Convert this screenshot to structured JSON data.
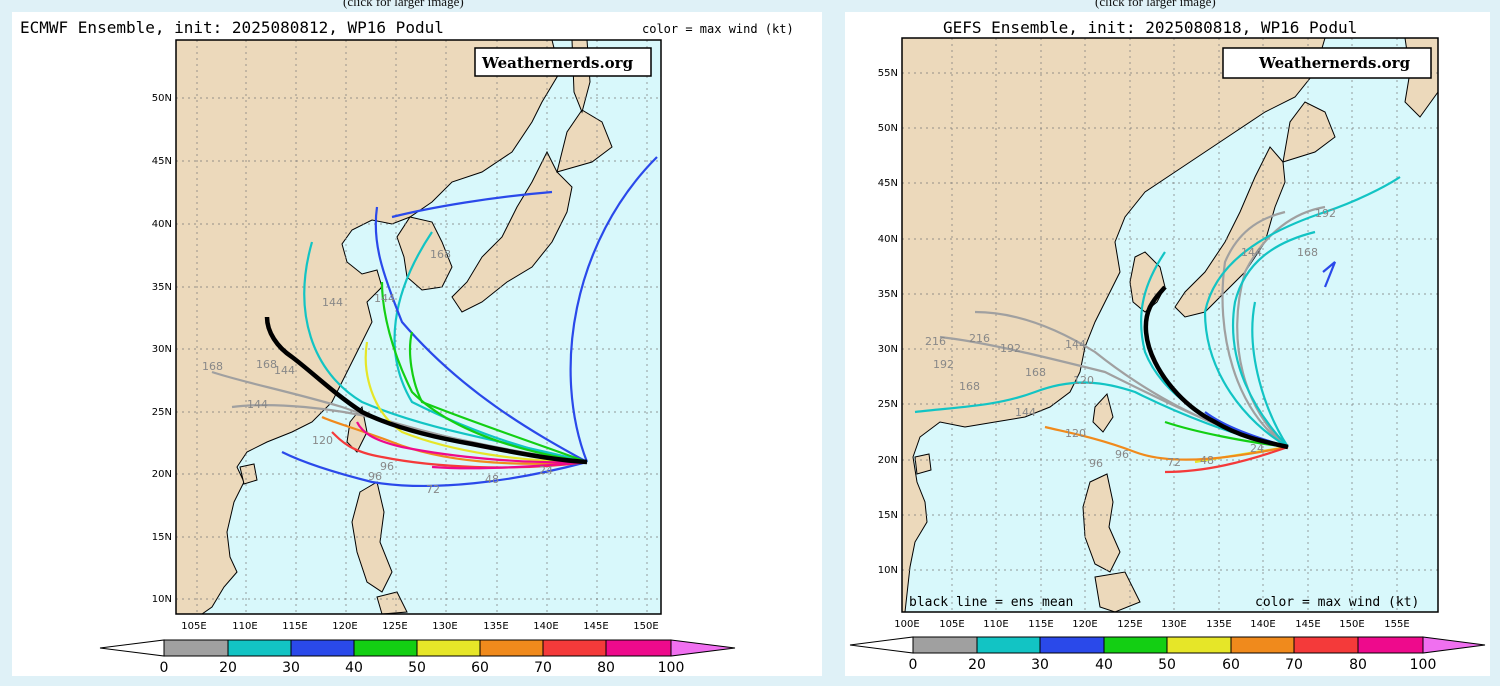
{
  "captions": [
    "(click for larger image)",
    "(click for larger image)"
  ],
  "left": {
    "title": "ECMWF Ensemble, init: 2025080812, WP16 Podul",
    "color_note": "color = max wind (kt)",
    "watermark": "Weathernerds.org",
    "lat_labels": [
      "50N",
      "45N",
      "40N",
      "35N",
      "30N",
      "25N",
      "20N",
      "15N",
      "10N"
    ],
    "lon_labels": [
      "105E",
      "110E",
      "115E",
      "120E",
      "125E",
      "130E",
      "135E",
      "140E",
      "145E",
      "150E"
    ],
    "hour_labels": [
      "168",
      "144",
      "144",
      "168",
      "168",
      "144",
      "144",
      "120",
      "96",
      "96",
      "72",
      "48",
      "24"
    ],
    "bottom_note_left": "",
    "bottom_note_right": ""
  },
  "right": {
    "title": "GEFS Ensemble, init: 2025080818, WP16 Podul",
    "color_note": "",
    "watermark": "Weathernerds.org",
    "lat_labels": [
      "55N",
      "50N",
      "45N",
      "40N",
      "35N",
      "30N",
      "25N",
      "20N",
      "15N",
      "10N"
    ],
    "lon_labels": [
      "100E",
      "105E",
      "110E",
      "115E",
      "120E",
      "125E",
      "130E",
      "135E",
      "140E",
      "145E",
      "150E",
      "155E"
    ],
    "hour_labels": [
      "216",
      "216",
      "192",
      "168",
      "168",
      "144",
      "144",
      "120",
      "120",
      "96",
      "96",
      "72",
      "48",
      "24",
      "192",
      "192",
      "168",
      "144"
    ],
    "bottom_note_left": "black line = ens mean",
    "bottom_note_right": "color = max wind (kt)"
  },
  "colorbar": {
    "ticks": [
      "0",
      "20",
      "30",
      "40",
      "50",
      "60",
      "70",
      "80",
      "100"
    ],
    "colors": [
      "#a0a0a0",
      "#12c4c4",
      "#2a49ea",
      "#13cf13",
      "#e6e628",
      "#f08a1c",
      "#f43a3a",
      "#ee0a8c"
    ],
    "extend_low_color": "#ffffff",
    "extend_high_color": "#f070f0"
  },
  "colors": {
    "ocean": "#d8f8fb",
    "land": "#ecd9bb",
    "mean_track": "#000000"
  }
}
